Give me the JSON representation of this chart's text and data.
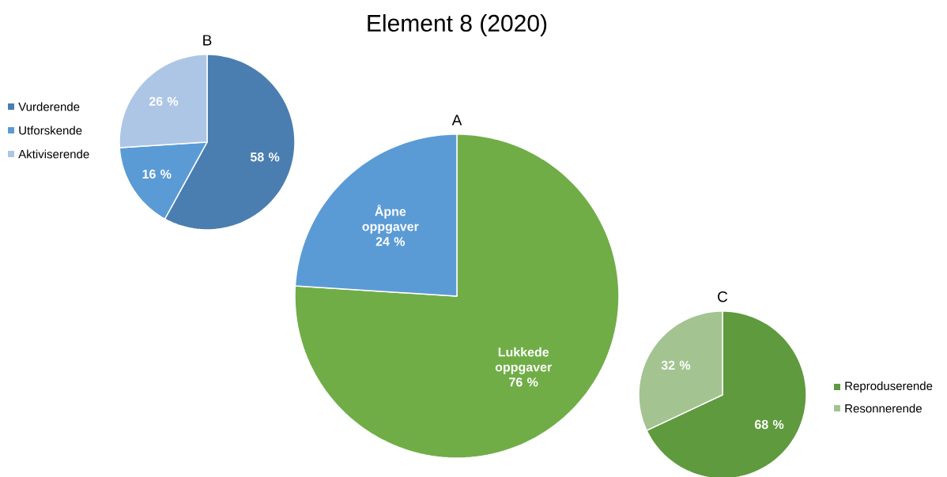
{
  "chart_data": [
    {
      "type": "pie",
      "title": "B",
      "categories": [
        "Vurderende",
        "Utforskende",
        "Aktiviserende"
      ],
      "values": [
        58,
        16,
        26
      ],
      "colors": [
        "#4a7eb0",
        "#5b9bd5",
        "#adc6e5"
      ],
      "value_labels": [
        "58 %",
        "16 %",
        "26 %"
      ],
      "legend": "left"
    },
    {
      "type": "pie",
      "title": "A",
      "annotations": [
        "Element 8 (2020)"
      ],
      "categories": [
        "Lukkede oppgaver",
        "Åpne oppgaver"
      ],
      "values": [
        76,
        24
      ],
      "colors": [
        "#70ad47",
        "#5b9bd5"
      ],
      "value_labels": [
        "76 %",
        "24 %"
      ],
      "legend": false
    },
    {
      "type": "pie",
      "title": "C",
      "categories": [
        "Reproduserende",
        "Resonnerende"
      ],
      "values": [
        68,
        32
      ],
      "colors": [
        "#5f9a3e",
        "#a3c490"
      ],
      "value_labels": [
        "68 %",
        "32 %"
      ],
      "legend": "right"
    }
  ]
}
